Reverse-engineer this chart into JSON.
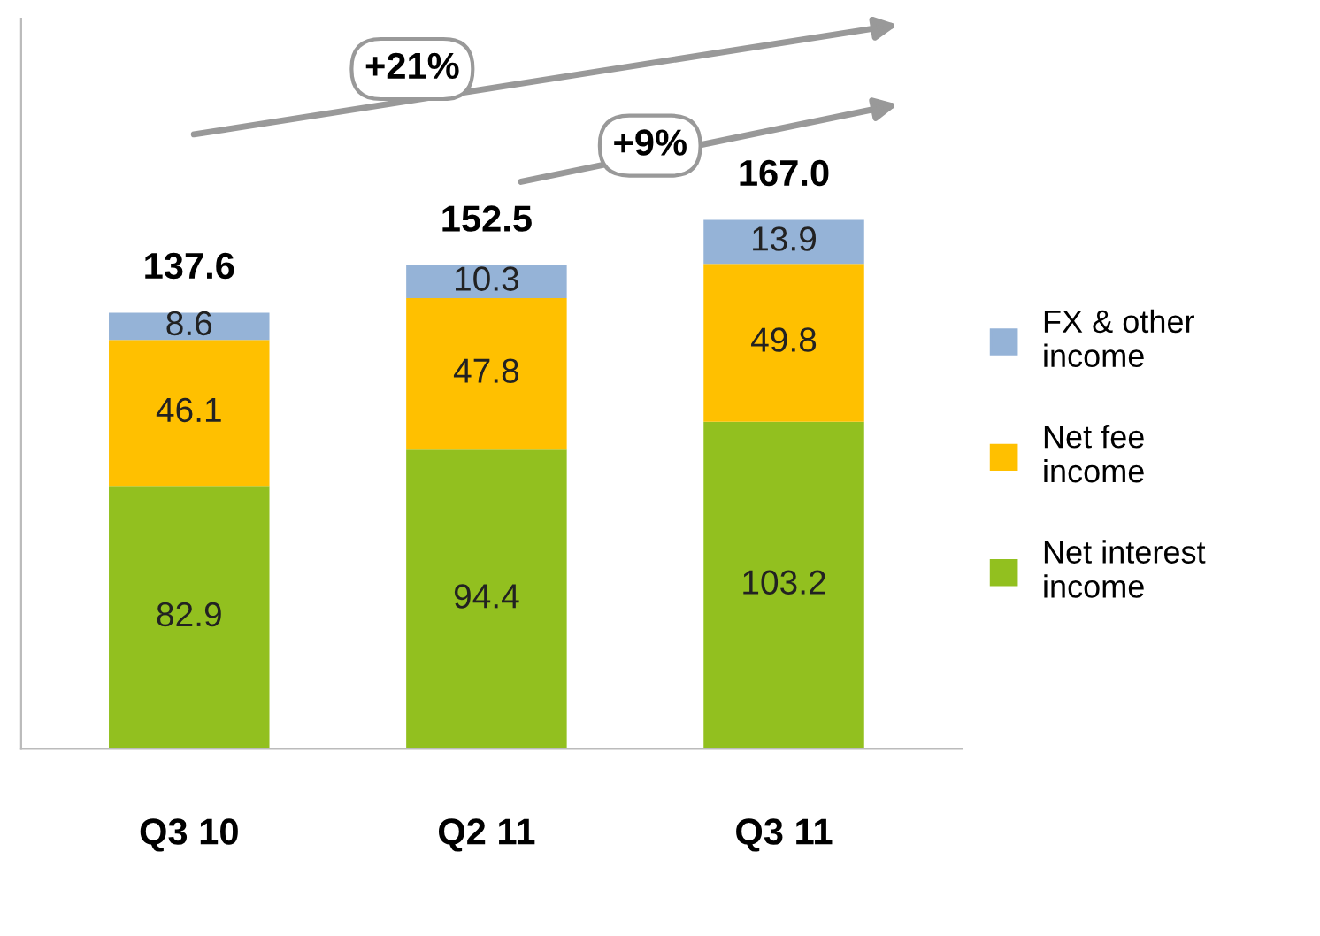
{
  "chart_data": {
    "type": "bar",
    "stacked": true,
    "data_labels": true,
    "tick_labels": "x",
    "grid": false,
    "legend": "right",
    "categories": [
      "Q3 10",
      "Q2 11",
      "Q3 11"
    ],
    "series": [
      {
        "name": "Net interest\nincome",
        "color": "#92c01f",
        "values": [
          82.9,
          94.4,
          103.2
        ]
      },
      {
        "name": "Net fee\nincome",
        "color": "#ffc000",
        "values": [
          46.1,
          47.8,
          49.8
        ]
      },
      {
        "name": "FX & other\nincome",
        "color": "#95b3d7",
        "values": [
          8.6,
          10.3,
          13.9
        ]
      }
    ],
    "totals": [
      "137.6",
      "152.5",
      "167.0"
    ],
    "annotations": [
      "+21%",
      "+9%"
    ]
  }
}
